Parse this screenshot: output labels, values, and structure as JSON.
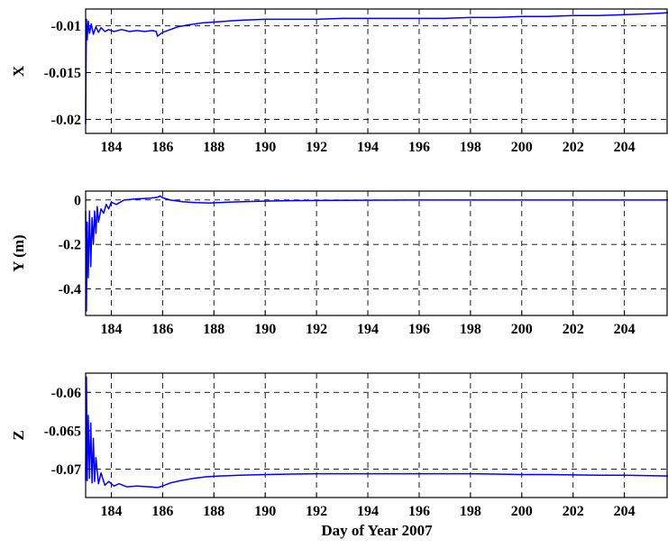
{
  "colors": {
    "series": "#0000ff",
    "axis": "#000000",
    "background": "#ffffff"
  },
  "chart_data": [
    {
      "type": "line",
      "title": "",
      "xlabel": "",
      "ylabel": "X",
      "xlim": [
        183,
        205.7
      ],
      "ylim": [
        -0.0215,
        -0.0082
      ],
      "grid": true,
      "xticks": [
        184,
        186,
        188,
        190,
        192,
        194,
        196,
        198,
        200,
        202,
        204
      ],
      "xticklabels": [
        "184",
        "186",
        "188",
        "190",
        "192",
        "194",
        "196",
        "198",
        "200",
        "202",
        "204"
      ],
      "yticks": [
        -0.01,
        -0.015,
        -0.02
      ],
      "yticklabels": [
        "-0.01",
        "-0.015",
        "-0.02"
      ],
      "series": [
        {
          "color": "#0000ff",
          "x": [
            183.0,
            183.03,
            183.06,
            183.1,
            183.15,
            183.22,
            183.3,
            183.4,
            183.5,
            183.6,
            183.75,
            183.9,
            184.1,
            184.4,
            184.7,
            185.0,
            185.3,
            185.6,
            185.75,
            185.8,
            185.85,
            186.0,
            186.3,
            186.6,
            187.0,
            187.5,
            188.0,
            188.5,
            189.0,
            190.0,
            191.0,
            192.0,
            193.0,
            194.0,
            195.0,
            196.0,
            197.0,
            198.0,
            199.0,
            200.0,
            201.0,
            202.0,
            203.0,
            204.0,
            205.0,
            205.7
          ],
          "y": [
            -0.0205,
            -0.0093,
            -0.0115,
            -0.0095,
            -0.0108,
            -0.0098,
            -0.0109,
            -0.0101,
            -0.0107,
            -0.0102,
            -0.0106,
            -0.0104,
            -0.0106,
            -0.0104,
            -0.0106,
            -0.0105,
            -0.0106,
            -0.0105,
            -0.0106,
            -0.0111,
            -0.011,
            -0.0107,
            -0.0104,
            -0.0101,
            -0.0099,
            -0.0097,
            -0.0096,
            -0.0095,
            -0.0094,
            -0.0093,
            -0.0093,
            -0.0093,
            -0.0092,
            -0.0092,
            -0.0092,
            -0.0092,
            -0.0092,
            -0.0091,
            -0.0091,
            -0.009,
            -0.009,
            -0.0089,
            -0.0089,
            -0.0088,
            -0.0087,
            -0.0086
          ]
        }
      ]
    },
    {
      "type": "line",
      "title": "",
      "xlabel": "",
      "ylabel": "Y (m)",
      "xlim": [
        183,
        205.7
      ],
      "ylim": [
        -0.52,
        0.04
      ],
      "grid": true,
      "xticks": [
        184,
        186,
        188,
        190,
        192,
        194,
        196,
        198,
        200,
        202,
        204
      ],
      "xticklabels": [
        "184",
        "186",
        "188",
        "190",
        "192",
        "194",
        "196",
        "198",
        "200",
        "202",
        "204"
      ],
      "yticks": [
        0,
        -0.2,
        -0.4
      ],
      "yticklabels": [
        "0",
        "-0.2",
        "-0.4"
      ],
      "series": [
        {
          "color": "#0000ff",
          "x": [
            183.0,
            183.03,
            183.06,
            183.1,
            183.15,
            183.2,
            183.25,
            183.3,
            183.35,
            183.4,
            183.45,
            183.5,
            183.6,
            183.7,
            183.8,
            183.9,
            184.0,
            184.2,
            184.5,
            185.0,
            185.5,
            185.8,
            185.9,
            186.0,
            186.3,
            186.8,
            187.3,
            187.8,
            188.0,
            188.5,
            189.0,
            190.0,
            191.0,
            192.0,
            194.0,
            196.0,
            198.0,
            200.0,
            202.0,
            204.0,
            205.7
          ],
          "y": [
            -0.05,
            -0.5,
            -0.1,
            -0.35,
            -0.05,
            -0.3,
            -0.08,
            -0.2,
            -0.05,
            -0.15,
            -0.03,
            -0.1,
            -0.04,
            -0.06,
            -0.02,
            -0.04,
            -0.01,
            -0.02,
            0.0,
            0.005,
            0.008,
            0.012,
            0.018,
            0.01,
            0.0,
            -0.008,
            -0.012,
            -0.014,
            -0.013,
            -0.01,
            -0.008,
            -0.005,
            -0.003,
            -0.002,
            -0.001,
            0.0,
            0.0,
            0.0,
            0.0,
            0.0,
            0.0
          ]
        }
      ]
    },
    {
      "type": "line",
      "title": "",
      "xlabel": "Day of Year 2007",
      "ylabel": "Z",
      "xlim": [
        183,
        205.7
      ],
      "ylim": [
        -0.0737,
        -0.0575
      ],
      "grid": true,
      "xticks": [
        184,
        186,
        188,
        190,
        192,
        194,
        196,
        198,
        200,
        202,
        204
      ],
      "xticklabels": [
        "184",
        "186",
        "188",
        "190",
        "192",
        "194",
        "196",
        "198",
        "200",
        "202",
        "204"
      ],
      "yticks": [
        -0.06,
        -0.065,
        -0.07
      ],
      "yticklabels": [
        "-0.06",
        "-0.065",
        "-0.07"
      ],
      "series": [
        {
          "color": "#0000ff",
          "x": [
            183.0,
            183.03,
            183.06,
            183.1,
            183.15,
            183.2,
            183.25,
            183.3,
            183.35,
            183.4,
            183.5,
            183.6,
            183.75,
            183.9,
            184.1,
            184.3,
            184.6,
            185.0,
            185.5,
            185.8,
            186.0,
            186.3,
            186.7,
            187.2,
            187.7,
            188.2,
            189.0,
            190.0,
            191.0,
            192.0,
            193.0,
            194.0,
            195.0,
            196.0,
            197.0,
            198.0,
            199.0,
            200.0,
            201.0,
            202.0,
            203.0,
            204.0,
            205.0,
            205.7
          ],
          "y": [
            -0.0715,
            -0.058,
            -0.0715,
            -0.063,
            -0.0712,
            -0.064,
            -0.0718,
            -0.066,
            -0.0716,
            -0.0685,
            -0.0719,
            -0.0705,
            -0.0721,
            -0.0716,
            -0.0722,
            -0.0719,
            -0.0723,
            -0.0722,
            -0.0723,
            -0.0724,
            -0.0722,
            -0.0718,
            -0.0715,
            -0.0712,
            -0.071,
            -0.0709,
            -0.0708,
            -0.0707,
            -0.07065,
            -0.0706,
            -0.0706,
            -0.0706,
            -0.0706,
            -0.0706,
            -0.0706,
            -0.0706,
            -0.07065,
            -0.0707,
            -0.0707,
            -0.07075,
            -0.0708,
            -0.0708,
            -0.07085,
            -0.0709
          ]
        }
      ]
    }
  ]
}
